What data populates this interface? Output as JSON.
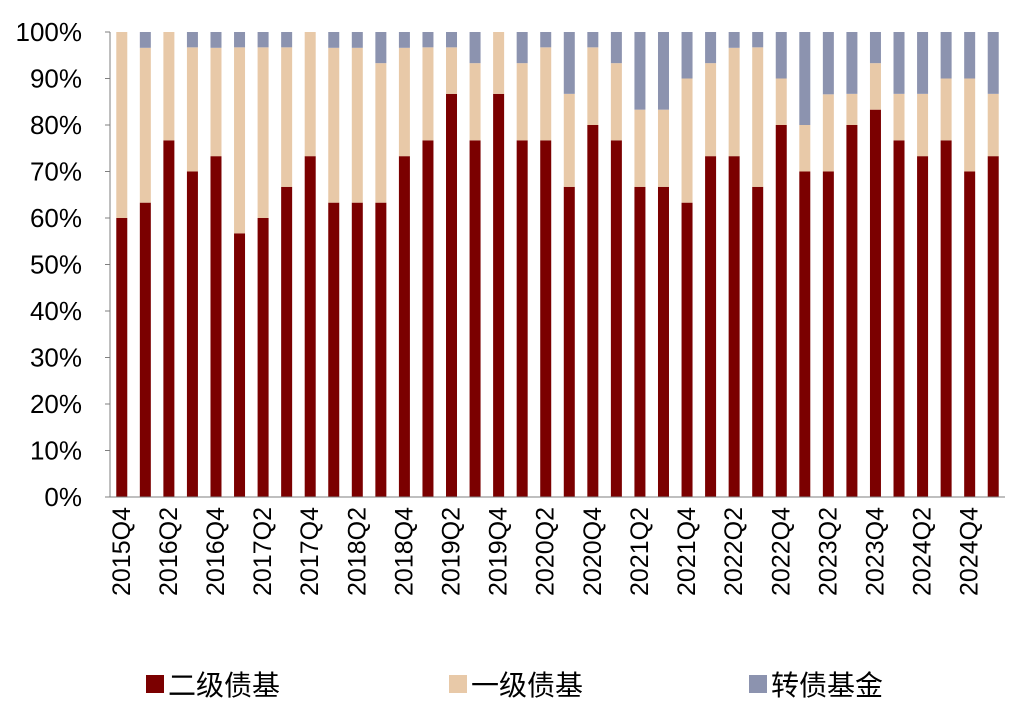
{
  "chart_data": {
    "type": "bar",
    "stacked": true,
    "percent_axis": true,
    "ylim": [
      0,
      100
    ],
    "yticks": [
      "0%",
      "10%",
      "20%",
      "30%",
      "40%",
      "50%",
      "60%",
      "70%",
      "80%",
      "90%",
      "100%"
    ],
    "categories": [
      "2015Q4",
      "2016Q1",
      "2016Q2",
      "2016Q3",
      "2016Q4",
      "2017Q1",
      "2017Q2",
      "2017Q3",
      "2017Q4",
      "2018Q1",
      "2018Q2",
      "2018Q3",
      "2018Q4",
      "2019Q1",
      "2019Q2",
      "2019Q3",
      "2019Q4",
      "2020Q1",
      "2020Q2",
      "2020Q3",
      "2020Q4",
      "2021Q1",
      "2021Q2",
      "2021Q3",
      "2021Q4",
      "2022Q1",
      "2022Q2",
      "2022Q3",
      "2022Q4",
      "2023Q1",
      "2023Q2",
      "2023Q3",
      "2023Q4",
      "2024Q1",
      "2024Q2",
      "2024Q3",
      "2024Q4",
      "2025Q1"
    ],
    "xtick_labels": [
      "2015Q4",
      "2016Q2",
      "2016Q4",
      "2017Q2",
      "2017Q4",
      "2018Q2",
      "2018Q4",
      "2019Q2",
      "2019Q4",
      "2020Q2",
      "2020Q4",
      "2021Q2",
      "2021Q4",
      "2022Q2",
      "2022Q4",
      "2023Q2",
      "2023Q4",
      "2024Q2",
      "2024Q4"
    ],
    "series": [
      {
        "name": "二级债基",
        "color": "#7B0000",
        "values": [
          60,
          63.3,
          76.7,
          70,
          73.3,
          56.7,
          60,
          66.7,
          73.3,
          63.3,
          63.3,
          63.3,
          73.3,
          76.7,
          86.7,
          76.7,
          86.7,
          76.7,
          76.7,
          66.7,
          80,
          76.7,
          66.7,
          66.7,
          63.3,
          73.3,
          73.3,
          66.7,
          80,
          70,
          70,
          80,
          83.3,
          76.7,
          73.3,
          76.7,
          70,
          73.3
        ]
      },
      {
        "name": "一级债基",
        "color": "#E8C9A8",
        "values": [
          40,
          33.3,
          23.3,
          26.7,
          23.3,
          40,
          36.7,
          30,
          26.7,
          33.3,
          33.3,
          30,
          23.3,
          20,
          10,
          16.6,
          13.3,
          16.6,
          20,
          20,
          16.7,
          16.6,
          16.6,
          16.6,
          26.7,
          20,
          23.3,
          30,
          10,
          10,
          16.6,
          6.7,
          10,
          10,
          13.4,
          13.3,
          20,
          13.4
        ]
      },
      {
        "name": "转债基金",
        "color": "#8C93AF",
        "values": [
          0,
          3.4,
          0,
          3.3,
          3.4,
          3.3,
          3.3,
          3.3,
          0,
          3.4,
          3.4,
          6.7,
          3.4,
          3.3,
          3.3,
          6.7,
          0,
          6.7,
          3.3,
          13.3,
          3.3,
          6.7,
          16.7,
          16.7,
          10,
          6.7,
          3.4,
          3.3,
          10,
          20,
          13.4,
          13.3,
          6.7,
          13.3,
          13.3,
          10,
          10,
          13.3
        ]
      }
    ],
    "legend_position": "bottom",
    "grid": false
  }
}
